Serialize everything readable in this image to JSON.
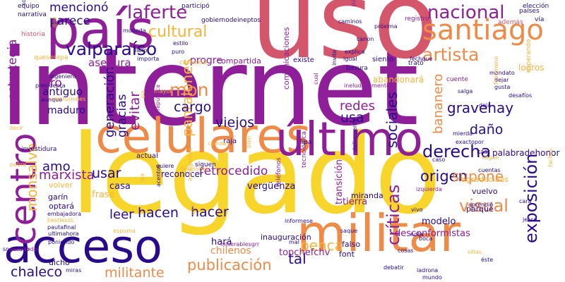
{
  "palette": {
    "background": "#ffffff",
    "purple": "#8e1f99",
    "indigo": "#2a0a8c",
    "magenta": "#c2337a",
    "rose": "#d4566a",
    "orange": "#ef8a47",
    "amber": "#f8b43a",
    "yellow": "#f8d52a"
  },
  "words": [
    {
      "text": "internet",
      "color": "purple"
    },
    {
      "text": "legado",
      "color": "yellow"
    },
    {
      "text": "uso",
      "color": "rose"
    },
    {
      "text": "país",
      "color": "purple"
    },
    {
      "text": "celulares",
      "color": "orange"
    },
    {
      "text": "último",
      "color": "purple"
    },
    {
      "text": "militar",
      "color": "orange"
    },
    {
      "text": "acceso",
      "color": "indigo"
    },
    {
      "text": "santiago",
      "color": "orange"
    },
    {
      "text": "centro",
      "color": "purple"
    },
    {
      "text": "nacional",
      "color": "purple"
    },
    {
      "text": "laferte",
      "color": "purple"
    },
    {
      "text": "valparaíso",
      "color": "indigo"
    },
    {
      "text": "artista",
      "color": "orange"
    },
    {
      "text": "cultural",
      "color": "amber"
    },
    {
      "text": "mon",
      "color": "orange"
    },
    {
      "text": "derecha",
      "color": "indigo"
    },
    {
      "text": "visual",
      "color": "orange"
    },
    {
      "text": "publicación",
      "color": "orange"
    },
    {
      "text": "exposición",
      "color": "indigo"
    },
    {
      "text": "monsalve",
      "color": "amber"
    },
    {
      "text": "gravehay",
      "color": "indigo"
    },
    {
      "text": "pantalones",
      "color": "amber"
    },
    {
      "text": "sociales",
      "color": "indigo"
    },
    {
      "text": "críticas",
      "color": "purple"
    },
    {
      "text": "penca",
      "color": "amber"
    },
    {
      "text": "militante",
      "color": "orange"
    },
    {
      "text": "chaleco",
      "color": "indigo"
    },
    {
      "text": "mencionó",
      "color": "indigo"
    },
    {
      "text": "parece",
      "color": "indigo"
    },
    {
      "text": "amo",
      "color": "indigo"
    },
    {
      "text": "leer",
      "color": "indigo"
    },
    {
      "text": "hacen",
      "color": "indigo"
    },
    {
      "text": "hacer",
      "color": "indigo"
    },
    {
      "text": "tal",
      "color": "indigo"
    },
    {
      "text": "usar",
      "color": "indigo"
    },
    {
      "text": "origen",
      "color": "indigo"
    },
    {
      "text": "supone",
      "color": "orange"
    },
    {
      "text": "marxista",
      "color": "purple"
    },
    {
      "text": "generación",
      "color": "indigo"
    },
    {
      "text": "gracias",
      "color": "indigo"
    },
    {
      "text": "evitar",
      "color": "purple"
    },
    {
      "text": "cargo",
      "color": "indigo"
    },
    {
      "text": "redes",
      "color": "purple"
    },
    {
      "text": "usa",
      "color": "indigo"
    },
    {
      "text": "viejos",
      "color": "indigo"
    },
    {
      "text": "daño",
      "color": "indigo"
    },
    {
      "text": "retrocedido",
      "color": "purple"
    },
    {
      "text": "estrategia",
      "color": "purple"
    },
    {
      "text": "pro",
      "color": "purple"
    },
    {
      "text": "progre",
      "color": "purple"
    },
    {
      "text": "bananero",
      "color": "orange"
    },
    {
      "text": "antiguo",
      "color": "indigo"
    },
    {
      "text": "maduro",
      "color": "indigo"
    },
    {
      "text": "chilenos",
      "color": "orange"
    },
    {
      "text": "vergüenza",
      "color": "indigo"
    },
    {
      "text": "transición",
      "color": "purple"
    },
    {
      "text": "tierra",
      "color": "purple"
    },
    {
      "text": "modelo",
      "color": "indigo"
    },
    {
      "text": "desconformistas",
      "color": "purple"
    },
    {
      "text": "topchefchv",
      "color": "purple"
    },
    {
      "text": "hará",
      "color": "indigo"
    },
    {
      "text": "palabradehonor",
      "color": "indigo"
    },
    {
      "text": "reconocer",
      "color": "indigo"
    },
    {
      "text": "actual",
      "color": "indigo"
    },
    {
      "text": "frase",
      "color": "amber"
    },
    {
      "text": "casa",
      "color": "indigo"
    },
    {
      "text": "volver",
      "color": "amber"
    },
    {
      "text": "garín",
      "color": "indigo"
    },
    {
      "text": "optará",
      "color": "indigo"
    },
    {
      "text": "dicho",
      "color": "indigo"
    },
    {
      "text": "vuelvo",
      "color": "indigo"
    },
    {
      "text": "agradecidos",
      "color": "amber"
    },
    {
      "text": "parque",
      "color": "indigo"
    },
    {
      "text": "falso",
      "color": "indigo"
    },
    {
      "text": "font",
      "color": "indigo"
    },
    {
      "text": "inauguración",
      "color": "indigo"
    },
    {
      "text": "miranda",
      "color": "indigo"
    },
    {
      "text": "asegura",
      "color": "purple"
    },
    {
      "text": "compartida",
      "color": "purple"
    },
    {
      "text": "existe",
      "color": "indigo"
    },
    {
      "text": "logros",
      "color": "amber"
    },
    {
      "text": "siento",
      "color": "indigo"
    },
    {
      "text": "tecnológica",
      "color": "purple"
    },
    {
      "text": "teléfonos",
      "color": "purple"
    },
    {
      "text": "comunicaciones",
      "color": "purple"
    },
    {
      "text": "abandonará",
      "color": "amber"
    },
    {
      "text": "presidencia",
      "color": "rose"
    },
    {
      "text": "gobiernodeineptos",
      "color": "indigo"
    },
    {
      "text": "registro",
      "color": "purple"
    },
    {
      "text": "participa",
      "color": "purple"
    },
    {
      "text": "además",
      "color": "rose"
    },
    {
      "text": "elección",
      "color": "indigo"
    },
    {
      "text": "vía",
      "color": "indigo"
    },
    {
      "text": "países",
      "color": "indigo"
    },
    {
      "text": "equipo",
      "color": "indigo"
    },
    {
      "text": "narrativa",
      "color": "indigo"
    },
    {
      "text": "historia",
      "color": "rose"
    },
    {
      "text": "quesesepa",
      "color": "amber"
    },
    {
      "text": "ingeniero",
      "color": "indigo"
    },
    {
      "text": "presidenta",
      "color": "indigo"
    },
    {
      "text": "aunque",
      "color": "indigo"
    },
    {
      "text": "investidura",
      "color": "indigo"
    },
    {
      "text": "embajadora",
      "color": "indigo"
    },
    {
      "text": "bestiesss",
      "color": "amber"
    },
    {
      "text": "pautafinal",
      "color": "indigo"
    },
    {
      "text": "ultimahora",
      "color": "indigo"
    },
    {
      "text": "poniendo",
      "color": "indigo"
    },
    {
      "text": "participó",
      "color": "indigo"
    },
    {
      "text": "moneda",
      "color": "indigo"
    },
    {
      "text": "estilo",
      "color": "indigo"
    },
    {
      "text": "puro",
      "color": "indigo"
    },
    {
      "text": "importa",
      "color": "indigo"
    },
    {
      "text": "libro",
      "color": "indigo"
    },
    {
      "text": "trató",
      "color": "indigo"
    },
    {
      "text": "basura",
      "color": "indigo"
    },
    {
      "text": "canon",
      "color": "indigo"
    },
    {
      "text": "caminos",
      "color": "indigo"
    },
    {
      "text": "próxima",
      "color": "indigo"
    },
    {
      "text": "igual",
      "color": "indigo"
    },
    {
      "text": "invite",
      "color": "indigo"
    },
    {
      "text": "cuente",
      "color": "purple"
    },
    {
      "text": "salga",
      "color": "indigo"
    },
    {
      "text": "mandato",
      "color": "indigo"
    },
    {
      "text": "dejar",
      "color": "indigo"
    },
    {
      "text": "gusta",
      "color": "indigo"
    },
    {
      "text": "desafíos",
      "color": "indigo"
    },
    {
      "text": "deja",
      "color": "indigo"
    },
    {
      "text": "mierda",
      "color": "indigo"
    },
    {
      "text": "exactopor",
      "color": "indigo"
    },
    {
      "text": "kast",
      "color": "indigo"
    },
    {
      "text": "llegan",
      "color": "amber"
    },
    {
      "text": "caso",
      "color": "indigo"
    },
    {
      "text": "izquierda",
      "color": "purple"
    },
    {
      "text": "aprendió",
      "color": "indigo"
    },
    {
      "text": "cara",
      "color": "indigo"
    },
    {
      "text": "jessé",
      "color": "indigo"
    },
    {
      "text": "vivo",
      "color": "indigo"
    },
    {
      "text": "nota",
      "color": "indigo"
    },
    {
      "text": "saque",
      "color": "indigo"
    },
    {
      "text": "cosas",
      "color": "indigo"
    },
    {
      "text": "boca",
      "color": "indigo"
    },
    {
      "text": "ladrona",
      "color": "indigo"
    },
    {
      "text": "mundo",
      "color": "indigo"
    },
    {
      "text": "éste",
      "color": "indigo"
    },
    {
      "text": "debatir",
      "color": "indigo"
    },
    {
      "text": "miras",
      "color": "indigo"
    },
    {
      "text": "sociólogo",
      "color": "indigo"
    },
    {
      "text": "informese",
      "color": "indigo"
    },
    {
      "text": "mal",
      "color": "indigo"
    },
    {
      "text": "raja",
      "color": "indigo"
    },
    {
      "text": "desmintió",
      "color": "amber"
    },
    {
      "text": "lipa",
      "color": "indigo"
    },
    {
      "text": "siguen",
      "color": "indigo"
    },
    {
      "text": "mayol",
      "color": "amber"
    },
    {
      "text": "república",
      "color": "purple"
    },
    {
      "text": "ela",
      "color": "amber"
    },
    {
      "text": "lea",
      "color": "amber"
    },
    {
      "text": "acentos",
      "color": "indigo"
    },
    {
      "text": "quiere",
      "color": "indigo"
    },
    {
      "text": "pobre",
      "color": "amber"
    },
    {
      "text": "fechque",
      "color": "indigo"
    },
    {
      "text": "explica",
      "color": "indigo"
    },
    {
      "text": "ineludiblemente",
      "color": "purple"
    },
    {
      "text": "cual",
      "color": "purple"
    },
    {
      "text": "delincuente",
      "color": "indigo"
    },
    {
      "text": "bien",
      "color": "amber"
    },
    {
      "text": "inteligentes",
      "color": "amber"
    },
    {
      "text": "esperando",
      "color": "amber"
    },
    {
      "text": "cuentas",
      "color": "indigo"
    },
    {
      "text": "sillas",
      "color": "amber"
    },
    {
      "text": "fachas",
      "color": "amber"
    },
    {
      "text": "conclusiones",
      "color": "amber"
    },
    {
      "text": "decir",
      "color": "amber"
    },
    {
      "text": "guevando",
      "color": "purple"
    },
    {
      "text": "souza",
      "color": "indigo"
    },
    {
      "text": "dua",
      "color": "amber"
    },
    {
      "text": "contexto",
      "color": "amber"
    },
    {
      "text": "espuma",
      "color": "amber"
    },
    {
      "text": "miserablesgrr",
      "color": "purple"
    },
    {
      "text": "camila",
      "color": "amber"
    },
    {
      "text": "vivir",
      "color": "amber"
    },
    {
      "text": "fenómeno",
      "color": "amber"
    }
  ]
}
